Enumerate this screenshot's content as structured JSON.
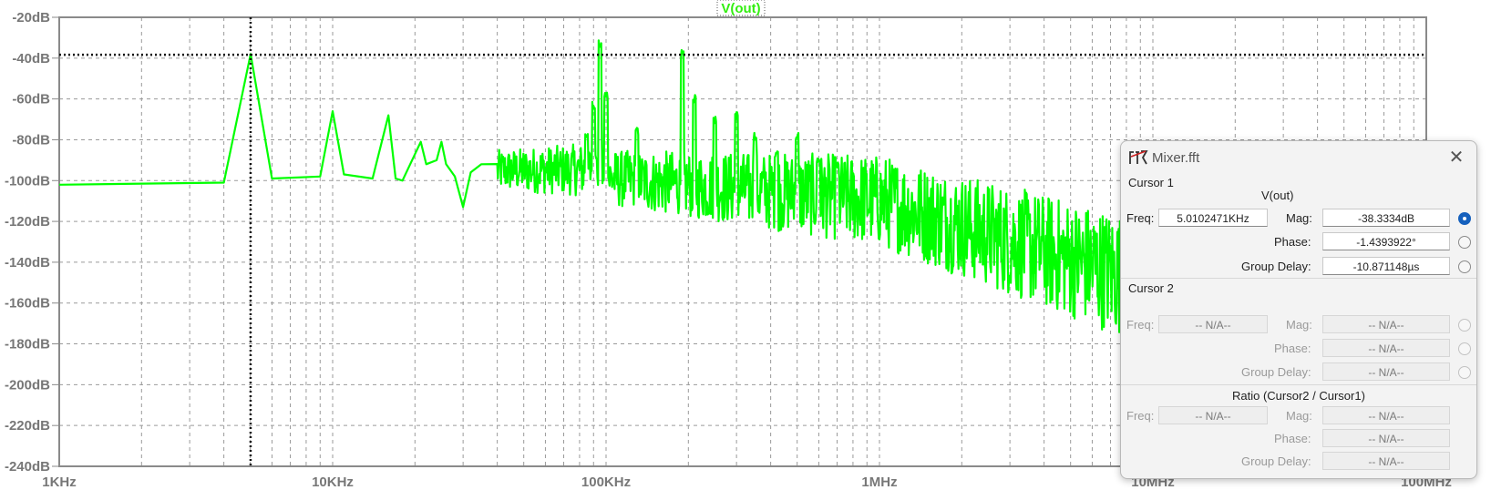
{
  "plot": {
    "trace_label": "V(out)",
    "y_ticks": [
      "-20dB",
      "-40dB",
      "-60dB",
      "-80dB",
      "-100dB",
      "-120dB",
      "-140dB",
      "-160dB",
      "-180dB",
      "-200dB",
      "-220dB",
      "-240dB"
    ],
    "x_ticks": [
      "1KHz",
      "10KHz",
      "100KHz",
      "1MHz",
      "10MHz",
      "100MHz"
    ],
    "trace_color": "#00ff00",
    "cursor_freq_hz": 5010.2471,
    "cursor_mag_db": -38.3334
  },
  "chart_data": {
    "type": "line",
    "title": "V(out)",
    "xscale": "log",
    "xlim": [
      1000,
      100000000
    ],
    "ylim": [
      -240,
      -20
    ],
    "grid": true,
    "series": [
      {
        "name": "V(out)",
        "color": "#00ff00",
        "x": [
          1000,
          4000,
          5010,
          6000,
          9000,
          10000,
          11000,
          14000,
          16000,
          17000,
          18000,
          21000,
          22000,
          24000,
          25000,
          26000,
          28000,
          30000,
          32000,
          35000,
          40000,
          45000,
          50000,
          60000,
          70000,
          80000,
          90000,
          95000,
          100000,
          120000,
          150000,
          190000,
          200000,
          250000,
          300000,
          400000,
          500000,
          1000000,
          2000000,
          5000000,
          10000000
        ],
        "y": [
          -102,
          -101,
          -38,
          -99,
          -98,
          -66,
          -97,
          -99,
          -68,
          -99,
          -100,
          -81,
          -92,
          -90,
          -81,
          -92,
          -98,
          -113,
          -96,
          -92,
          -94,
          -90,
          -104,
          -95,
          -96,
          -97,
          -90,
          -35,
          -99,
          -97,
          -100,
          -40,
          -100,
          -70,
          -98,
          -85,
          -100,
          -110,
          -120,
          -135,
          -150
        ]
      }
    ]
  },
  "dialog": {
    "title": "Mixer.fft",
    "cursor1": {
      "section": "Cursor 1",
      "trace": "V(out)",
      "freq_label": "Freq:",
      "freq": "5.0102471KHz",
      "mag_label": "Mag:",
      "mag": "-38.3334dB",
      "phase_label": "Phase:",
      "phase": "-1.4393922°",
      "gd_label": "Group Delay:",
      "gd": "-10.871148µs"
    },
    "cursor2": {
      "section": "Cursor 2",
      "freq_label": "Freq:",
      "freq": "-- N/A--",
      "mag_label": "Mag:",
      "mag": "-- N/A--",
      "phase_label": "Phase:",
      "phase": "-- N/A--",
      "gd_label": "Group Delay:",
      "gd": "-- N/A--"
    },
    "ratio": {
      "section": "Ratio (Cursor2 / Cursor1)",
      "freq_label": "Freq:",
      "freq": "-- N/A--",
      "mag_label": "Mag:",
      "mag": "-- N/A--",
      "phase_label": "Phase:",
      "phase": "-- N/A--",
      "gd_label": "Group Delay:",
      "gd": "-- N/A--"
    }
  }
}
